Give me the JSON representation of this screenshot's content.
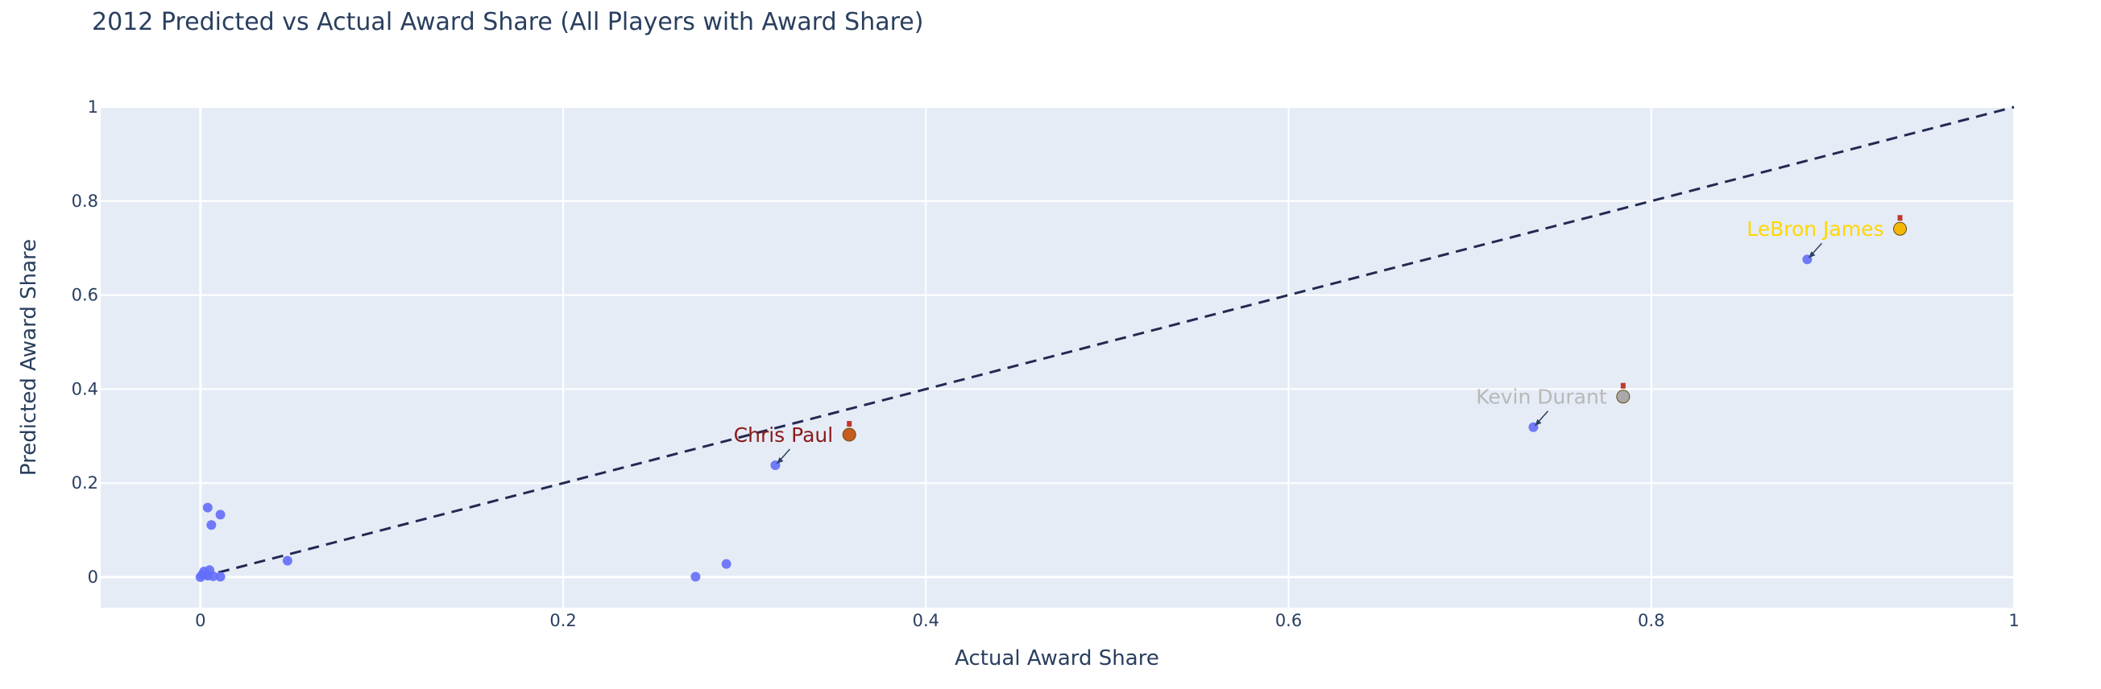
{
  "chart_data": {
    "type": "scatter",
    "title": "2012 Predicted vs Actual Award Share (All Players with Award Share)",
    "xlabel": "Actual Award Share",
    "ylabel": "Predicted Award Share",
    "xlim": [
      -0.055,
      1.0
    ],
    "ylim": [
      -0.065,
      1.0
    ],
    "xticks": [
      0,
      0.2,
      0.4,
      0.6,
      0.8,
      1
    ],
    "xtick_labels": [
      "0",
      "0.2",
      "0.4",
      "0.6",
      "0.8",
      "1"
    ],
    "yticks": [
      0,
      0.2,
      0.4,
      0.6,
      0.8,
      1
    ],
    "ytick_labels": [
      "0",
      "0.2",
      "0.4",
      "0.6",
      "0.8",
      "1"
    ],
    "grid": true,
    "background": "#e5ecf6",
    "series": [
      {
        "marker_color": "#636efa",
        "points": [
          {
            "x": 0.0,
            "y": 0.0
          },
          {
            "x": 0.001,
            "y": 0.005
          },
          {
            "x": 0.002,
            "y": 0.012
          },
          {
            "x": 0.003,
            "y": 0.006
          },
          {
            "x": 0.004,
            "y": 0.003
          },
          {
            "x": 0.005,
            "y": 0.015
          },
          {
            "x": 0.004,
            "y": 0.148
          },
          {
            "x": 0.006,
            "y": 0.111
          },
          {
            "x": 0.007,
            "y": 0.002
          },
          {
            "x": 0.011,
            "y": 0.133
          },
          {
            "x": 0.011,
            "y": 0.001
          },
          {
            "x": 0.048,
            "y": 0.035
          },
          {
            "x": 0.273,
            "y": 0.001
          },
          {
            "x": 0.29,
            "y": 0.028
          },
          {
            "x": 0.317,
            "y": 0.238
          },
          {
            "x": 0.735,
            "y": 0.319
          },
          {
            "x": 0.886,
            "y": 0.676
          }
        ]
      }
    ],
    "reference_line": {
      "style": "dashed",
      "color": "#222a52",
      "from": [
        0,
        0
      ],
      "to": [
        1,
        1
      ]
    },
    "annotations": [
      {
        "text": "LeBron James",
        "color": "#ffd700",
        "medal": "gold-medal",
        "medal_color": "#f2b705",
        "x": 0.886,
        "y": 0.676
      },
      {
        "text": "Kevin Durant",
        "color": "#b8b8b8",
        "medal": "silver-medal",
        "medal_color": "#a9a9a9",
        "x": 0.735,
        "y": 0.319
      },
      {
        "text": "Chris Paul",
        "color": "#8b1a1a",
        "medal": "bronze-medal",
        "medal_color": "#c65d1e",
        "x": 0.317,
        "y": 0.238
      }
    ]
  }
}
